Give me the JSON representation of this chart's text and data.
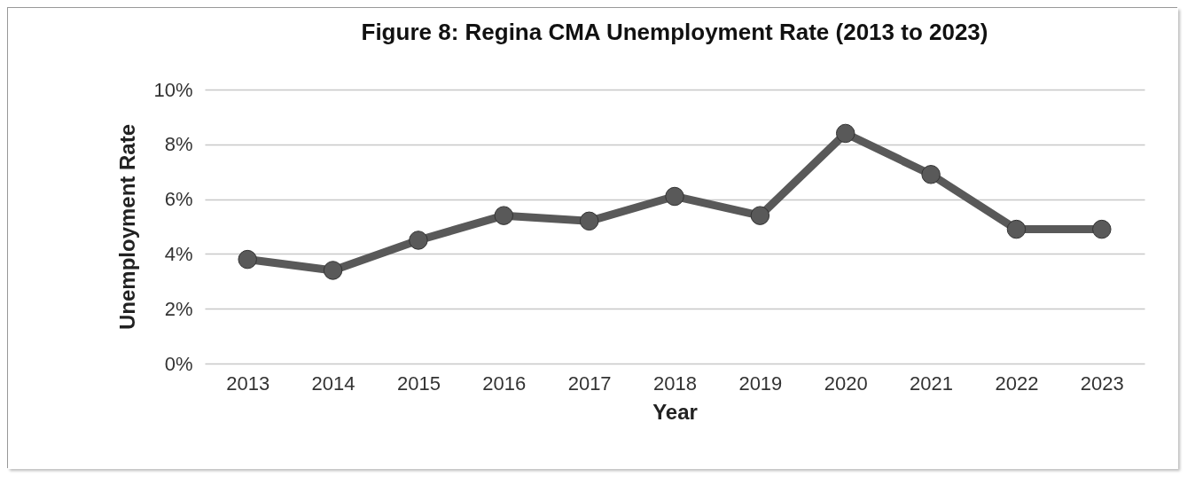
{
  "chart_data": {
    "type": "line",
    "title": "Figure 8: Regina CMA Unemployment Rate (2013 to 2023)",
    "xlabel": "Year",
    "ylabel": "Unemployment Rate",
    "categories": [
      "2013",
      "2014",
      "2015",
      "2016",
      "2017",
      "2018",
      "2019",
      "2020",
      "2021",
      "2022",
      "2023"
    ],
    "series": [
      {
        "color": "#595959",
        "values": [
          3.8,
          3.4,
          4.5,
          5.4,
          5.2,
          6.1,
          5.4,
          8.4,
          6.9,
          4.9,
          4.9
        ]
      }
    ],
    "ylim": [
      0,
      10
    ],
    "yticks": [
      {
        "value": 0,
        "label": "0%"
      },
      {
        "value": 2,
        "label": "2%"
      },
      {
        "value": 4,
        "label": "4%"
      },
      {
        "value": 6,
        "label": "6%"
      },
      {
        "value": 8,
        "label": "8%"
      },
      {
        "value": 10,
        "label": "10%"
      }
    ],
    "grid": "y",
    "marker": "circle",
    "line_style": "solid"
  }
}
